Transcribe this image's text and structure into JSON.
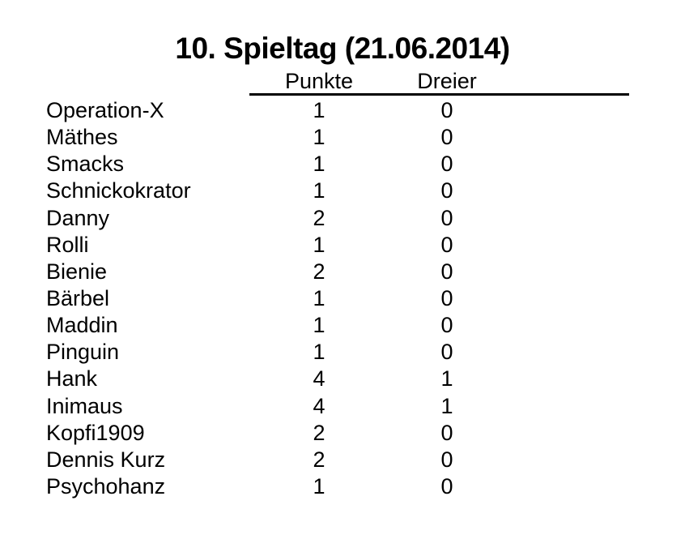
{
  "title": "10. Spieltag (21.06.2014)",
  "table": {
    "columns": [
      "Punkte",
      "Dreier"
    ],
    "rows": [
      {
        "name": "Operation-X",
        "punkte": "1",
        "dreier": "0"
      },
      {
        "name": "Mäthes",
        "punkte": "1",
        "dreier": "0"
      },
      {
        "name": "Smacks",
        "punkte": "1",
        "dreier": "0"
      },
      {
        "name": "Schnickokrator",
        "punkte": "1",
        "dreier": "0"
      },
      {
        "name": "Danny",
        "punkte": "2",
        "dreier": "0"
      },
      {
        "name": "Rolli",
        "punkte": "1",
        "dreier": "0"
      },
      {
        "name": "Bienie",
        "punkte": "2",
        "dreier": "0"
      },
      {
        "name": "Bärbel",
        "punkte": "1",
        "dreier": "0"
      },
      {
        "name": "Maddin",
        "punkte": "1",
        "dreier": "0"
      },
      {
        "name": "Pinguin",
        "punkte": "1",
        "dreier": "0"
      },
      {
        "name": "Hank",
        "punkte": "4",
        "dreier": "1"
      },
      {
        "name": "Inimaus",
        "punkte": "4",
        "dreier": "1"
      },
      {
        "name": "Kopfi1909",
        "punkte": "2",
        "dreier": "0"
      },
      {
        "name": "Dennis Kurz",
        "punkte": "2",
        "dreier": "0"
      },
      {
        "name": "Psychohanz",
        "punkte": "1",
        "dreier": "0"
      }
    ]
  },
  "colors": {
    "text": "#000000",
    "background": "#ffffff",
    "rule": "#000000"
  }
}
